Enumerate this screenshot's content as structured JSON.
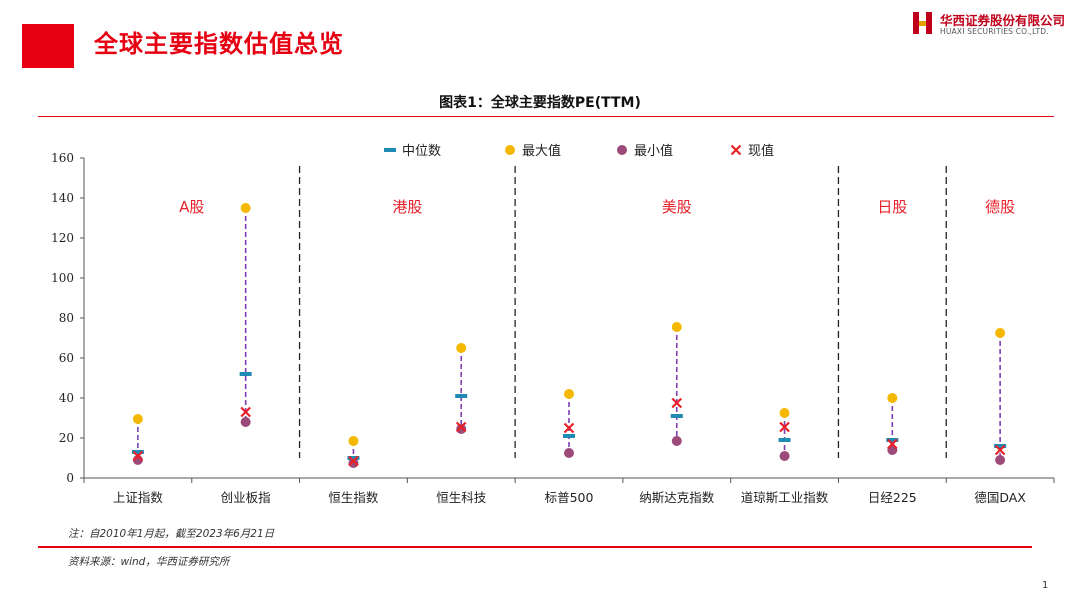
{
  "header": {
    "title": "全球主要指数估值总览",
    "logo_cn": "华西证券股份有限公司",
    "logo_en": "HUAXI SECURITIES CO.,LTD."
  },
  "figure_title": "图表1：全球主要指数PE(TTM)",
  "colors": {
    "median": "#1f8bb5",
    "max": "#f5b800",
    "min": "#9c4a7a",
    "current": "#e8202a",
    "range_line": "#7b3fb3",
    "accent": "#e60012"
  },
  "chart_data": {
    "type": "scatter",
    "title": "图表1：全球主要指数PE(TTM)",
    "ylim": [
      0,
      160
    ],
    "yticks": [
      0,
      20,
      40,
      60,
      80,
      100,
      120,
      140,
      160
    ],
    "legend_placement": "top-center",
    "categories": [
      "上证指数",
      "创业板指",
      "恒生指数",
      "恒生科技",
      "标普500",
      "纳斯达克指数",
      "道琼斯工业指数",
      "日经225",
      "德国DAX"
    ],
    "series": [
      {
        "name": "中位数",
        "values": [
          13,
          52,
          10,
          41,
          21,
          31,
          19,
          19,
          16
        ]
      },
      {
        "name": "最大值",
        "values": [
          29.5,
          135,
          18.5,
          65,
          42,
          75.5,
          32.5,
          40,
          72.5
        ]
      },
      {
        "name": "最小值",
        "values": [
          9,
          28,
          7.5,
          24.5,
          12.5,
          18.5,
          11,
          14,
          9
        ]
      },
      {
        "name": "现值",
        "values": [
          11,
          33,
          8.5,
          25.5,
          25,
          37.5,
          25.5,
          17,
          14
        ]
      }
    ],
    "groups": [
      {
        "label": "A股",
        "from": 0,
        "to": 1
      },
      {
        "label": "港股",
        "from": 2,
        "to": 3
      },
      {
        "label": "美股",
        "from": 4,
        "to": 6
      },
      {
        "label": "日股",
        "from": 7,
        "to": 7
      },
      {
        "label": "德股",
        "from": 8,
        "to": 8
      }
    ]
  },
  "footer": {
    "note": "注：自2010年1月起，截至2023年6月21日",
    "source": "资料来源：wind，华西证券研究所",
    "page_number": "1"
  }
}
